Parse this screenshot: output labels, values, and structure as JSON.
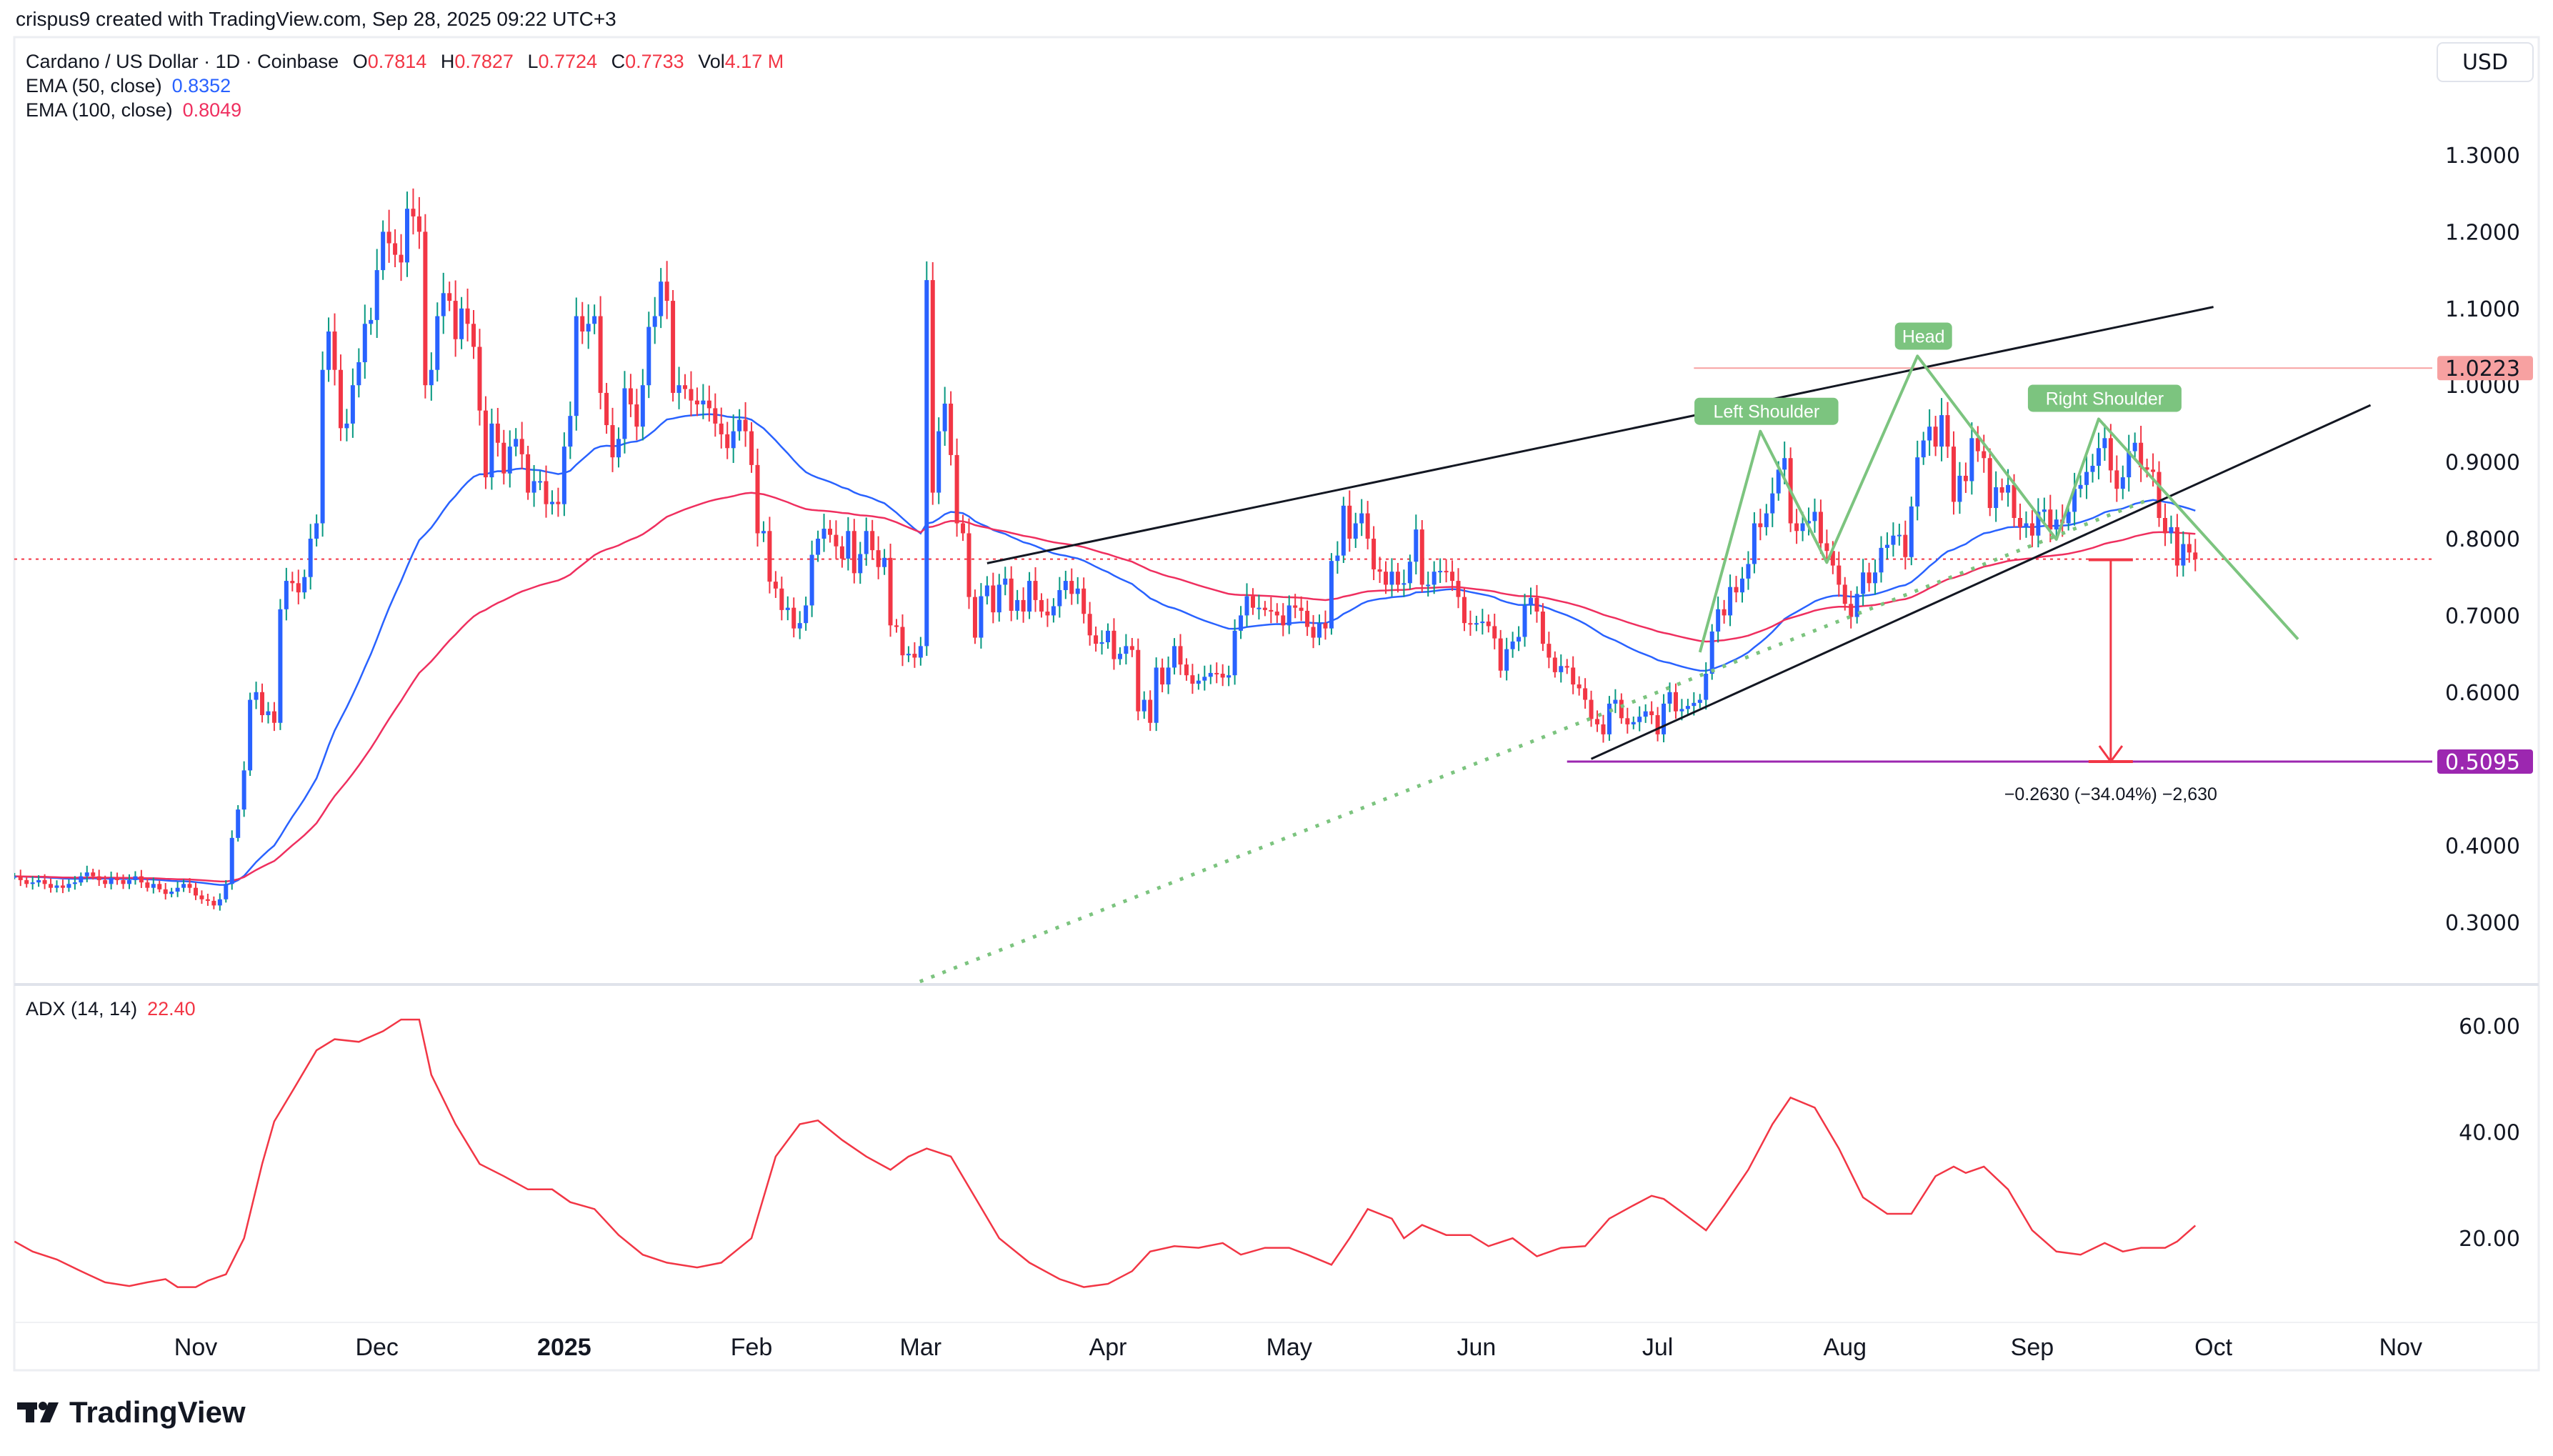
{
  "header": {
    "attribution": "crispus9 created with TradingView.com, Sep 28, 2025 09:22 UTC+3"
  },
  "legend": {
    "symbol": "Cardano / US Dollar · 1D · Coinbase",
    "o_label": "O",
    "open": "0.7814",
    "h_label": "H",
    "high": "0.7827",
    "l_label": "L",
    "low": "0.7724",
    "c_label": "C",
    "close": "0.7733",
    "vol_label": "Vol",
    "volume": "4.17 M",
    "ema50_label": "EMA (50, close)",
    "ema50_value": "0.8352",
    "ema100_label": "EMA (100, close)",
    "ema100_value": "0.8049",
    "adx_label": "ADX (14, 14)",
    "adx_value": "22.40"
  },
  "currency_button": "USD",
  "logo": {
    "text": "TradingView"
  },
  "colors": {
    "up_body": "#2962ff",
    "up_wick": "#089981",
    "down": "#f23645",
    "ema50": "#2962ff",
    "ema100": "#ef2f5f",
    "adx": "#f23645",
    "pattern": "#7cc47f",
    "resistance": "#f7a1a1",
    "target": "#9c27b0"
  },
  "chart_data": {
    "type": "candlestick",
    "first_date": "2024-10-02",
    "last_date": "2025-09-28",
    "closes": [
      0.36,
      0.355,
      0.35,
      0.352,
      0.355,
      0.35,
      0.345,
      0.348,
      0.345,
      0.35,
      0.352,
      0.36,
      0.365,
      0.36,
      0.355,
      0.35,
      0.358,
      0.355,
      0.35,
      0.355,
      0.36,
      0.352,
      0.345,
      0.35,
      0.343,
      0.337,
      0.34,
      0.345,
      0.35,
      0.345,
      0.335,
      0.33,
      0.328,
      0.322,
      0.33,
      0.35,
      0.41,
      0.447,
      0.498,
      0.59,
      0.6,
      0.57,
      0.575,
      0.56,
      0.708,
      0.745,
      0.742,
      0.73,
      0.75,
      0.8,
      0.82,
      1.02,
      1.07,
      1.02,
      0.944,
      0.95,
      1.0,
      1.03,
      1.08,
      1.085,
      1.15,
      1.2,
      1.185,
      1.17,
      1.16,
      1.23,
      1.22,
      1.2,
      1.0,
      1.02,
      1.09,
      1.12,
      1.11,
      1.06,
      1.1,
      1.08,
      1.05,
      0.967,
      0.88,
      0.95,
      0.925,
      0.885,
      0.92,
      0.93,
      0.91,
      0.86,
      0.875,
      0.875,
      0.845,
      0.848,
      0.845,
      0.92,
      0.96,
      1.09,
      1.07,
      1.08,
      1.09,
      0.99,
      0.948,
      0.906,
      0.93,
      0.996,
      0.975,
      0.946,
      1.0,
      1.076,
      1.09,
      1.135,
      1.11,
      0.99,
      1.0,
      0.995,
      0.98,
      0.975,
      0.98,
      0.97,
      0.95,
      0.936,
      0.918,
      0.94,
      0.955,
      0.94,
      0.896,
      0.807,
      0.81,
      0.744,
      0.735,
      0.707,
      0.71,
      0.683,
      0.69,
      0.713,
      0.779,
      0.8,
      0.813,
      0.805,
      0.79,
      0.774,
      0.81,
      0.755,
      0.78,
      0.81,
      0.785,
      0.763,
      0.775,
      0.687,
      0.685,
      0.648,
      0.65,
      0.645,
      0.66,
      1.137,
      0.86,
      0.94,
      0.976,
      0.909,
      0.82,
      0.807,
      0.724,
      0.671,
      0.725,
      0.739,
      0.704,
      0.74,
      0.748,
      0.706,
      0.72,
      0.705,
      0.745,
      0.72,
      0.705,
      0.7,
      0.712,
      0.733,
      0.745,
      0.728,
      0.735,
      0.702,
      0.674,
      0.663,
      0.665,
      0.68,
      0.643,
      0.65,
      0.66,
      0.655,
      0.575,
      0.59,
      0.56,
      0.632,
      0.61,
      0.632,
      0.66,
      0.636,
      0.622,
      0.611,
      0.615,
      0.62,
      0.625,
      0.624,
      0.619,
      0.622,
      0.68,
      0.7,
      0.725,
      0.71,
      0.71,
      0.707,
      0.705,
      0.7,
      0.687,
      0.713,
      0.71,
      0.706,
      0.685,
      0.671,
      0.69,
      0.683,
      0.771,
      0.778,
      0.843,
      0.8,
      0.82,
      0.833,
      0.8,
      0.76,
      0.757,
      0.74,
      0.757,
      0.74,
      0.742,
      0.77,
      0.812,
      0.74,
      0.74,
      0.757,
      0.758,
      0.757,
      0.745,
      0.724,
      0.69,
      0.688,
      0.69,
      0.692,
      0.686,
      0.67,
      0.628,
      0.656,
      0.666,
      0.672,
      0.713,
      0.723,
      0.705,
      0.663,
      0.645,
      0.626,
      0.634,
      0.632,
      0.61,
      0.605,
      0.59,
      0.565,
      0.558,
      0.545,
      0.585,
      0.59,
      0.566,
      0.558,
      0.561,
      0.568,
      0.575,
      0.57,
      0.545,
      0.585,
      0.6,
      0.575,
      0.578,
      0.582,
      0.586,
      0.59,
      0.624,
      0.679,
      0.708,
      0.7,
      0.737,
      0.73,
      0.748,
      0.767,
      0.82,
      0.815,
      0.833,
      0.859,
      0.89,
      0.905,
      0.82,
      0.81,
      0.82,
      0.823,
      0.835,
      0.794,
      0.784,
      0.765,
      0.74,
      0.715,
      0.698,
      0.728,
      0.756,
      0.742,
      0.756,
      0.788,
      0.792,
      0.804,
      0.805,
      0.776,
      0.842,
      0.906,
      0.928,
      0.946,
      0.92,
      0.961,
      0.92,
      0.848,
      0.882,
      0.875,
      0.931,
      0.914,
      0.905,
      0.84,
      0.867,
      0.86,
      0.87,
      0.827,
      0.815,
      0.82,
      0.804,
      0.835,
      0.838,
      0.812,
      0.825,
      0.82,
      0.835,
      0.865,
      0.87,
      0.887,
      0.895,
      0.918,
      0.931,
      0.889,
      0.865,
      0.88,
      0.914,
      0.925,
      0.893,
      0.89,
      0.887,
      0.827,
      0.807,
      0.815,
      0.765,
      0.793,
      0.782,
      0.7733
    ],
    "last_price": 0.7733,
    "price_axis": {
      "ticks": [
        "1.3000",
        "1.2000",
        "1.1000",
        "1.0000",
        "0.9000",
        "0.8000",
        "0.7000",
        "0.6000",
        "0.4000",
        "0.3000"
      ],
      "range": [
        0.22,
        1.36
      ]
    },
    "price_badges": [
      {
        "value": "1.0223",
        "price": 1.0223,
        "color": "#f7a1a1",
        "text_color": "#131722"
      },
      {
        "value": "0.5095",
        "price": 0.5095,
        "color": "#9c27b0",
        "text_color": "#ffffff"
      }
    ],
    "time_axis": [
      {
        "label": "Nov",
        "date": "2024-11-01"
      },
      {
        "label": "Dec",
        "date": "2024-12-01"
      },
      {
        "label": "2025",
        "date": "2025-01-01",
        "bold": true
      },
      {
        "label": "Feb",
        "date": "2025-02-01"
      },
      {
        "label": "Mar",
        "date": "2025-03-01"
      },
      {
        "label": "Apr",
        "date": "2025-04-01"
      },
      {
        "label": "May",
        "date": "2025-05-01"
      },
      {
        "label": "Jun",
        "date": "2025-06-01"
      },
      {
        "label": "Jul",
        "date": "2025-07-01"
      },
      {
        "label": "Aug",
        "date": "2025-08-01"
      },
      {
        "label": "Sep",
        "date": "2025-09-01"
      },
      {
        "label": "Oct",
        "date": "2025-10-01"
      },
      {
        "label": "Nov",
        "date": "2025-11-01"
      }
    ],
    "adx": {
      "axis_ticks": [
        "60.00",
        "40.00",
        "20.00"
      ],
      "dates": [
        "2024-10-02",
        "2024-10-05",
        "2024-10-09",
        "2024-10-13",
        "2024-10-17",
        "2024-10-21",
        "2024-10-24",
        "2024-10-27",
        "2024-10-29",
        "2024-11-01",
        "2024-11-03",
        "2024-11-06",
        "2024-11-09",
        "2024-11-12",
        "2024-11-14",
        "2024-11-17",
        "2024-11-21",
        "2024-11-24",
        "2024-11-28",
        "2024-12-02",
        "2024-12-05",
        "2024-12-08",
        "2024-12-10",
        "2024-12-14",
        "2024-12-18",
        "2024-12-22",
        "2024-12-26",
        "2024-12-30",
        "2025-01-02",
        "2025-01-06",
        "2025-01-10",
        "2025-01-14",
        "2025-01-18",
        "2025-01-23",
        "2025-01-27",
        "2025-02-01",
        "2025-02-05",
        "2025-02-09",
        "2025-02-12",
        "2025-02-16",
        "2025-02-20",
        "2025-02-24",
        "2025-02-27",
        "2025-03-02",
        "2025-03-06",
        "2025-03-10",
        "2025-03-14",
        "2025-03-19",
        "2025-03-24",
        "2025-03-28",
        "2025-04-01",
        "2025-04-05",
        "2025-04-08",
        "2025-04-12",
        "2025-04-16",
        "2025-04-20",
        "2025-04-23",
        "2025-04-27",
        "2025-05-01",
        "2025-05-04",
        "2025-05-08",
        "2025-05-11",
        "2025-05-14",
        "2025-05-18",
        "2025-05-20",
        "2025-05-23",
        "2025-05-27",
        "2025-05-31",
        "2025-06-03",
        "2025-06-07",
        "2025-06-11",
        "2025-06-15",
        "2025-06-19",
        "2025-06-23",
        "2025-06-27",
        "2025-06-30",
        "2025-07-02",
        "2025-07-05",
        "2025-07-09",
        "2025-07-12",
        "2025-07-16",
        "2025-07-20",
        "2025-07-23",
        "2025-07-27",
        "2025-07-31",
        "2025-08-04",
        "2025-08-08",
        "2025-08-12",
        "2025-08-16",
        "2025-08-19",
        "2025-08-21",
        "2025-08-24",
        "2025-08-28",
        "2025-09-01",
        "2025-09-05",
        "2025-09-09",
        "2025-09-13",
        "2025-09-16",
        "2025-09-19",
        "2025-09-23",
        "2025-09-25",
        "2025-09-28"
      ],
      "values": [
        19.4,
        17.5,
        16.0,
        13.8,
        11.7,
        11.0,
        11.7,
        12.3,
        10.8,
        10.8,
        12.0,
        13.2,
        20.0,
        34.0,
        42.0,
        47.7,
        55.4,
        57.5,
        57.0,
        59.0,
        61.2,
        61.2,
        50.8,
        41.5,
        34.0,
        31.7,
        29.2,
        29.2,
        26.8,
        25.5,
        20.6,
        16.9,
        15.4,
        14.5,
        15.4,
        20.0,
        35.4,
        41.5,
        42.2,
        38.5,
        35.4,
        32.9,
        35.4,
        36.9,
        35.4,
        27.7,
        20.0,
        15.4,
        12.3,
        10.8,
        11.4,
        13.8,
        17.5,
        18.5,
        18.2,
        19.1,
        16.9,
        18.2,
        18.2,
        16.9,
        15.0,
        20.0,
        25.5,
        23.7,
        20.0,
        22.5,
        20.6,
        20.6,
        18.5,
        20.0,
        16.6,
        18.2,
        18.5,
        23.7,
        26.2,
        28.0,
        27.4,
        24.9,
        21.5,
        26.2,
        32.9,
        41.5,
        46.5,
        44.6,
        36.9,
        27.7,
        24.6,
        24.6,
        31.7,
        33.5,
        32.3,
        33.5,
        29.2,
        21.5,
        17.5,
        16.9,
        19.1,
        17.5,
        18.2,
        18.2,
        19.4,
        22.4
      ]
    },
    "drawings": {
      "upper_trendline": {
        "from": [
          "2025-03-12",
          0.768
        ],
        "to": [
          "2025-10-01",
          1.102
        ]
      },
      "lower_trendline": {
        "from": [
          "2025-06-20",
          0.513
        ],
        "to": [
          "2025-10-27",
          0.974
        ]
      },
      "dotted_trendline": {
        "from": [
          "2025-02-27",
          0.217
        ],
        "to": [
          "2025-09-20",
          0.85
        ]
      },
      "resistance_line": {
        "from": "2025-07-07",
        "price": 1.0223
      },
      "target_line": {
        "from": "2025-06-16",
        "price": 0.5095
      },
      "head_and_shoulders": [
        [
          "2025-07-08",
          0.652
        ],
        [
          "2025-07-18",
          0.94
        ],
        [
          "2025-07-29",
          0.769
        ],
        [
          "2025-08-13",
          1.038
        ],
        [
          "2025-09-05",
          0.799
        ],
        [
          "2025-09-12",
          0.956
        ],
        [
          "2025-10-15",
          0.669
        ]
      ],
      "labels": [
        {
          "text": "Left Shoulder",
          "date": "2025-07-19",
          "price": 0.966
        },
        {
          "text": "Head",
          "date": "2025-08-14",
          "price": 1.064
        },
        {
          "text": "Right Shoulder",
          "date": "2025-09-13",
          "price": 0.983
        }
      ],
      "measure": {
        "date": "2025-09-14",
        "from": 0.7725,
        "to": 0.5095,
        "label": "−0.2630 (−34.04%) −2,630"
      }
    }
  }
}
